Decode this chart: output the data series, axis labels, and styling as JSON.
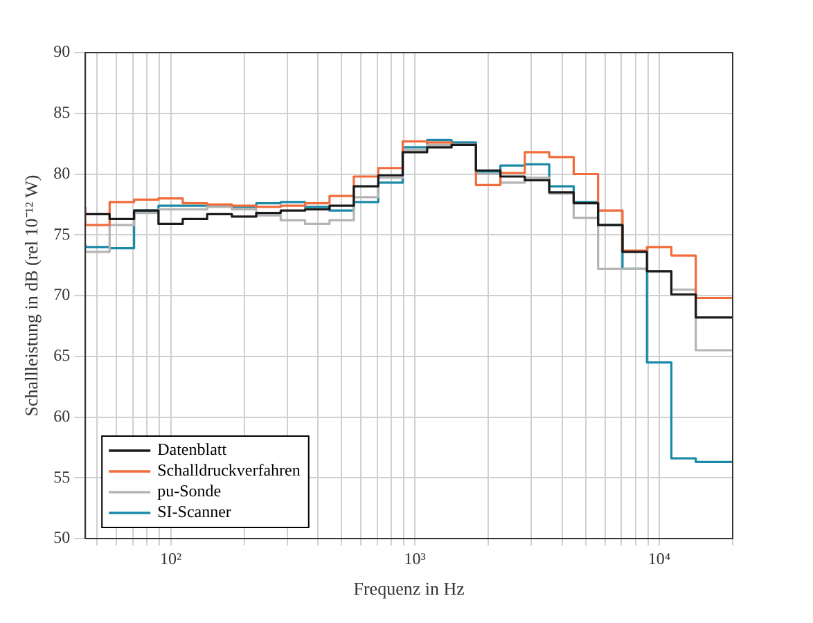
{
  "chart_data": {
    "type": "step",
    "xlabel": "Frequenz in Hz",
    "ylabel": "Schallleistung in dB (rel 10⁻¹² W)",
    "log": "x",
    "grid": true,
    "legend": "bottom left",
    "marker": "none",
    "line_style": "solid",
    "x": [
      44.7,
      56.2,
      70.8,
      89.1,
      112,
      141,
      178,
      224,
      282,
      355,
      447,
      562,
      708,
      891,
      1122,
      1413,
      1778,
      2239,
      2818,
      3548,
      4467,
      5623,
      7079,
      8913,
      11220,
      14125,
      17783
    ],
    "xlim": [
      44.7,
      20000
    ],
    "xticks": [
      {
        "value": 50,
        "label": null
      },
      {
        "value": 60,
        "label": null
      },
      {
        "value": 70,
        "label": null
      },
      {
        "value": 80,
        "label": null
      },
      {
        "value": 90,
        "label": null
      },
      {
        "value": 100,
        "label": "10²"
      },
      {
        "value": 200,
        "label": null
      },
      {
        "value": 300,
        "label": null
      },
      {
        "value": 400,
        "label": null
      },
      {
        "value": 500,
        "label": null
      },
      {
        "value": 600,
        "label": null
      },
      {
        "value": 700,
        "label": null
      },
      {
        "value": 800,
        "label": null
      },
      {
        "value": 900,
        "label": null
      },
      {
        "value": 1000,
        "label": "10³"
      },
      {
        "value": 2000,
        "label": null
      },
      {
        "value": 3000,
        "label": null
      },
      {
        "value": 4000,
        "label": null
      },
      {
        "value": 5000,
        "label": null
      },
      {
        "value": 6000,
        "label": null
      },
      {
        "value": 7000,
        "label": null
      },
      {
        "value": 8000,
        "label": null
      },
      {
        "value": 9000,
        "label": null
      },
      {
        "value": 10000,
        "label": "10⁴"
      },
      {
        "value": 20000,
        "label": null
      }
    ],
    "ylim": [
      50,
      90
    ],
    "yticks": [
      50,
      55,
      60,
      65,
      70,
      75,
      80,
      85,
      90
    ],
    "series": [
      {
        "name": "Datenblatt",
        "color": "#1a1a1a",
        "values": [
          76.7,
          76.7,
          76.3,
          77.0,
          75.9,
          76.3,
          76.7,
          76.5,
          76.8,
          77.0,
          77.1,
          77.4,
          79.0,
          79.9,
          81.8,
          82.2,
          82.4,
          80.3,
          79.8,
          79.5,
          78.5,
          77.6,
          75.8,
          73.6,
          72.0,
          70.1,
          68.2
        ]
      },
      {
        "name": "Schalldruckverfahren",
        "color": "#f26b3a",
        "values": [
          77.3,
          75.8,
          77.7,
          77.9,
          78.0,
          77.6,
          77.5,
          77.4,
          77.3,
          77.4,
          77.6,
          78.2,
          79.8,
          80.5,
          82.7,
          82.6,
          82.4,
          79.1,
          80.1,
          81.8,
          81.4,
          80.0,
          77.0,
          73.7,
          74.0,
          73.3,
          69.8
        ]
      },
      {
        "name": "pu-Sonde",
        "color": "#b4b4b4",
        "values": [
          73.7,
          73.6,
          75.8,
          76.8,
          77.1,
          77.1,
          77.3,
          77.1,
          76.6,
          76.2,
          75.9,
          76.2,
          78.1,
          79.7,
          82.0,
          82.4,
          82.4,
          80.0,
          79.3,
          79.7,
          78.4,
          76.4,
          72.2,
          72.2,
          72.0,
          70.5,
          65.5
        ]
      },
      {
        "name": "SI-Scanner",
        "color": "#1a8aa8",
        "values": [
          74.2,
          74.0,
          73.9,
          77.0,
          77.4,
          77.4,
          77.4,
          77.3,
          77.6,
          77.7,
          77.3,
          77.0,
          77.7,
          79.3,
          82.2,
          82.8,
          82.6,
          80.2,
          80.7,
          80.8,
          79.0,
          77.7,
          75.8,
          72.2,
          64.5,
          56.6,
          56.3
        ]
      }
    ]
  }
}
